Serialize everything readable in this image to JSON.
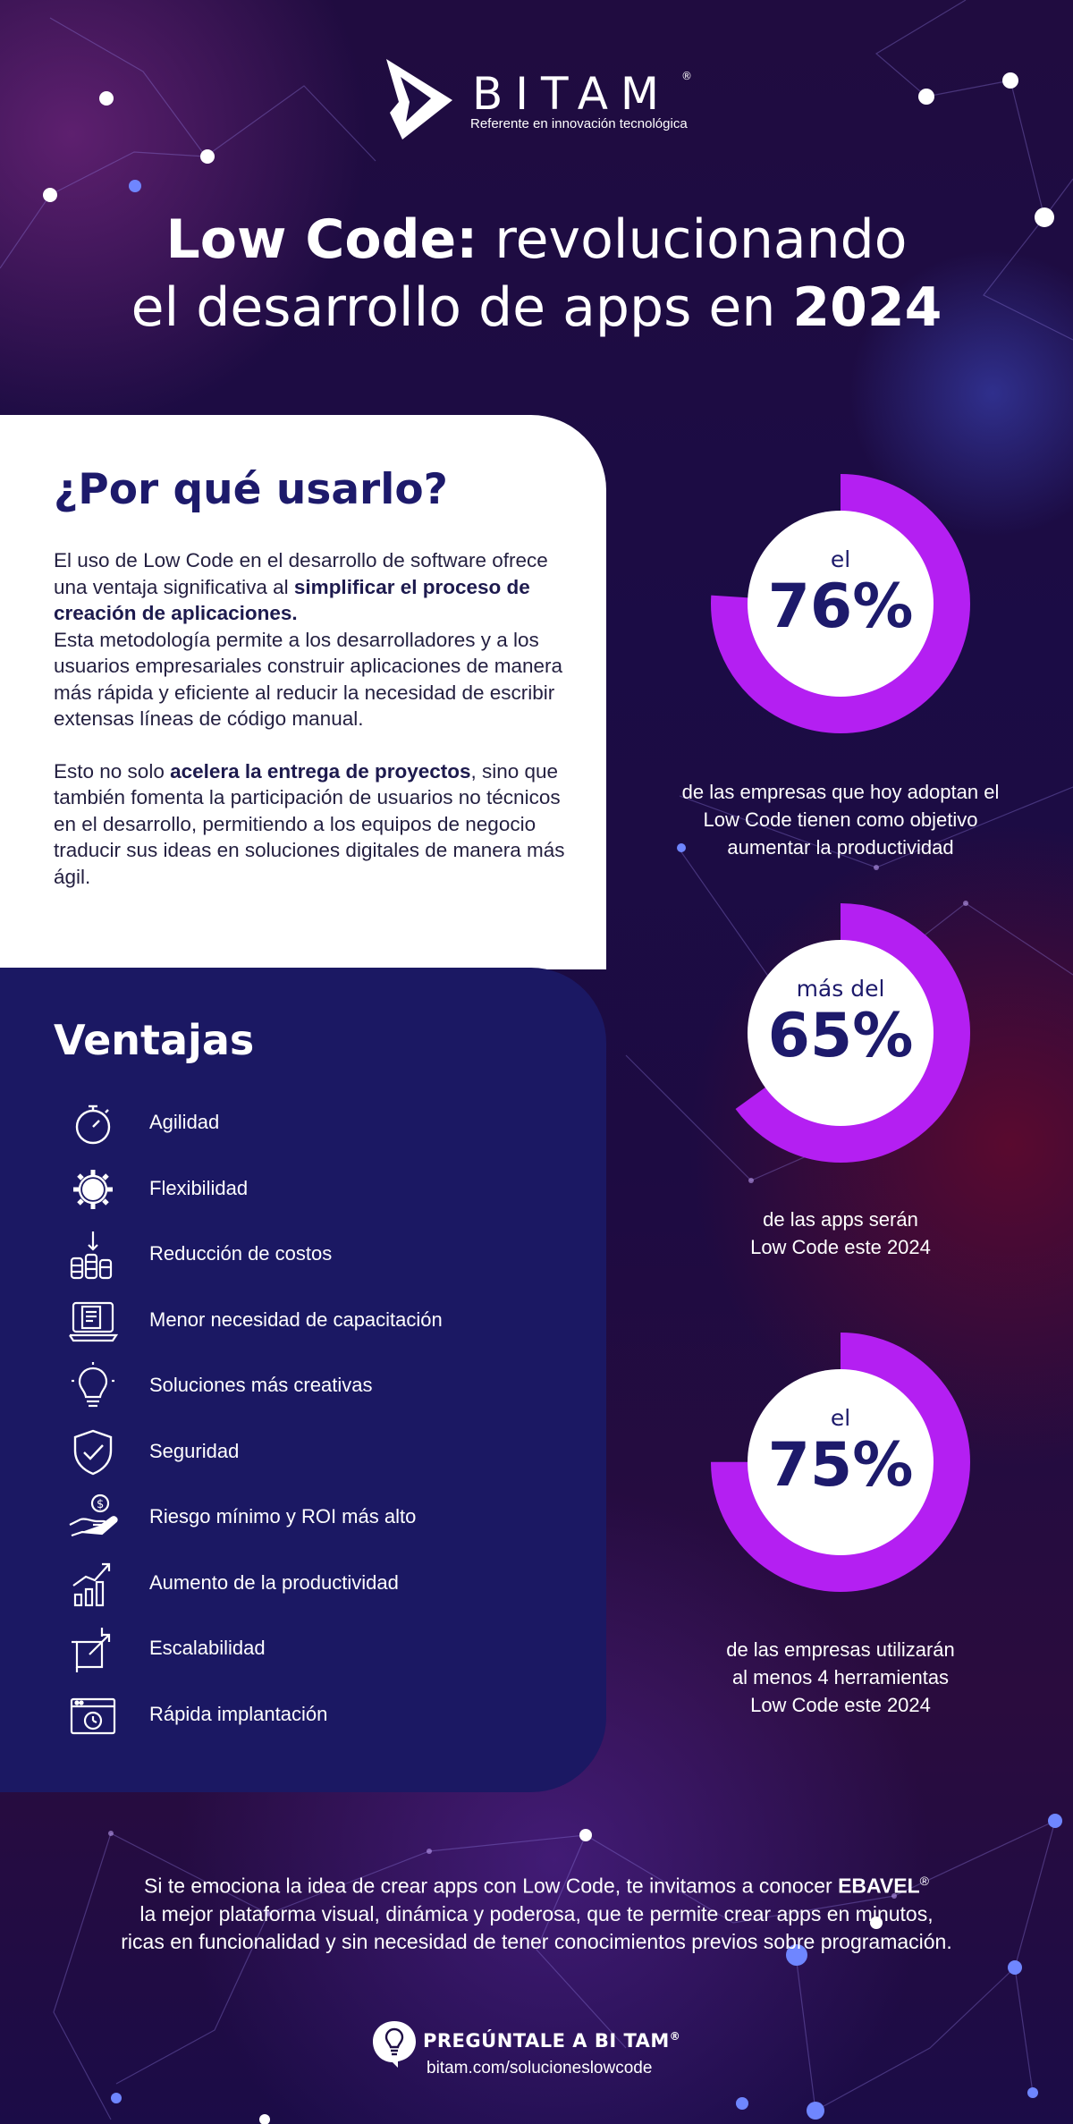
{
  "brand": {
    "name": "BITAM",
    "registered": "®",
    "tagline": "Referente en innovación tecnológica"
  },
  "header": {
    "title_bold": "Low Code:",
    "title_rest": " revolucionando",
    "title_line2": "el desarrollo de apps en ",
    "title_year": "2024"
  },
  "why": {
    "title": "¿Por qué usarlo?",
    "p1_a": "El uso de Low Code en el desarrollo de software ofrece una ventaja significativa al ",
    "p1_bold": "simplificar el proceso de creación de aplicaciones.",
    "p1_b": "Esta metodología permite a los desarrolladores y a los usuarios empresariales construir aplicaciones de manera más rápida y eficiente al reducir la necesidad de escribir extensas líneas de código manual.",
    "p2_a": "Esto no solo ",
    "p2_bold": "acelera la entrega de proyectos",
    "p2_b": ", sino que también fomenta la participación de usuarios no técnicos en el desarrollo, permitiendo a los equipos de negocio traducir sus ideas en soluciones digitales de manera más ágil."
  },
  "advantages": {
    "title": "Ventajas",
    "items": [
      {
        "label": "Agilidad",
        "icon": "stopwatch-icon"
      },
      {
        "label": "Flexibilidad",
        "icon": "gear-icon"
      },
      {
        "label": "Reducción de costos",
        "icon": "coins-down-icon"
      },
      {
        "label": "Menor necesidad de capacitación",
        "icon": "laptop-document-icon"
      },
      {
        "label": "Soluciones más creativas",
        "icon": "lightbulb-icon"
      },
      {
        "label": "Seguridad",
        "icon": "shield-check-icon"
      },
      {
        "label": "Riesgo mínimo y ROI más alto",
        "icon": "hand-coin-icon"
      },
      {
        "label": "Aumento de la productividad",
        "icon": "growth-chart-icon"
      },
      {
        "label": "Escalabilidad",
        "icon": "scale-corner-icon"
      },
      {
        "label": "Rápida implantación",
        "icon": "browser-timer-icon"
      }
    ]
  },
  "stats": [
    {
      "prefix": "el",
      "value": "76%",
      "fraction": 0.76,
      "desc_lines": [
        "de las empresas que hoy adoptan el",
        "Low Code tienen como objetivo",
        "aumentar la productividad"
      ]
    },
    {
      "prefix": "más del",
      "value": "65%",
      "fraction": 0.65,
      "desc_lines": [
        "de las apps serán",
        "Low Code este 2024"
      ]
    },
    {
      "prefix": "el",
      "value": "75%",
      "fraction": 0.75,
      "desc_lines": [
        "de las empresas utilizarán",
        "al menos 4 herramientas",
        "Low Code este 2024"
      ]
    }
  ],
  "cta": {
    "line1_a": "Si te emociona la idea de crear apps con Low Code, te invitamos a conocer ",
    "line1_bold": "EBAVEL",
    "line1_reg": "®",
    "line2": "la mejor plataforma visual, dinámica y poderosa, que te permite crear apps en minutos,",
    "line3": "ricas en funcionalidad y sin necesidad de tener conocimientos previos sobre programación."
  },
  "ask": {
    "title": "PREGÚNTALE A BI TAM",
    "registered": "®",
    "url": "bitam.com/solucioneslowcode"
  },
  "colors": {
    "navy": "#1d1a6b",
    "card_navy": "#1b1863",
    "ring_purple": "#b41ff2",
    "white": "#ffffff"
  }
}
